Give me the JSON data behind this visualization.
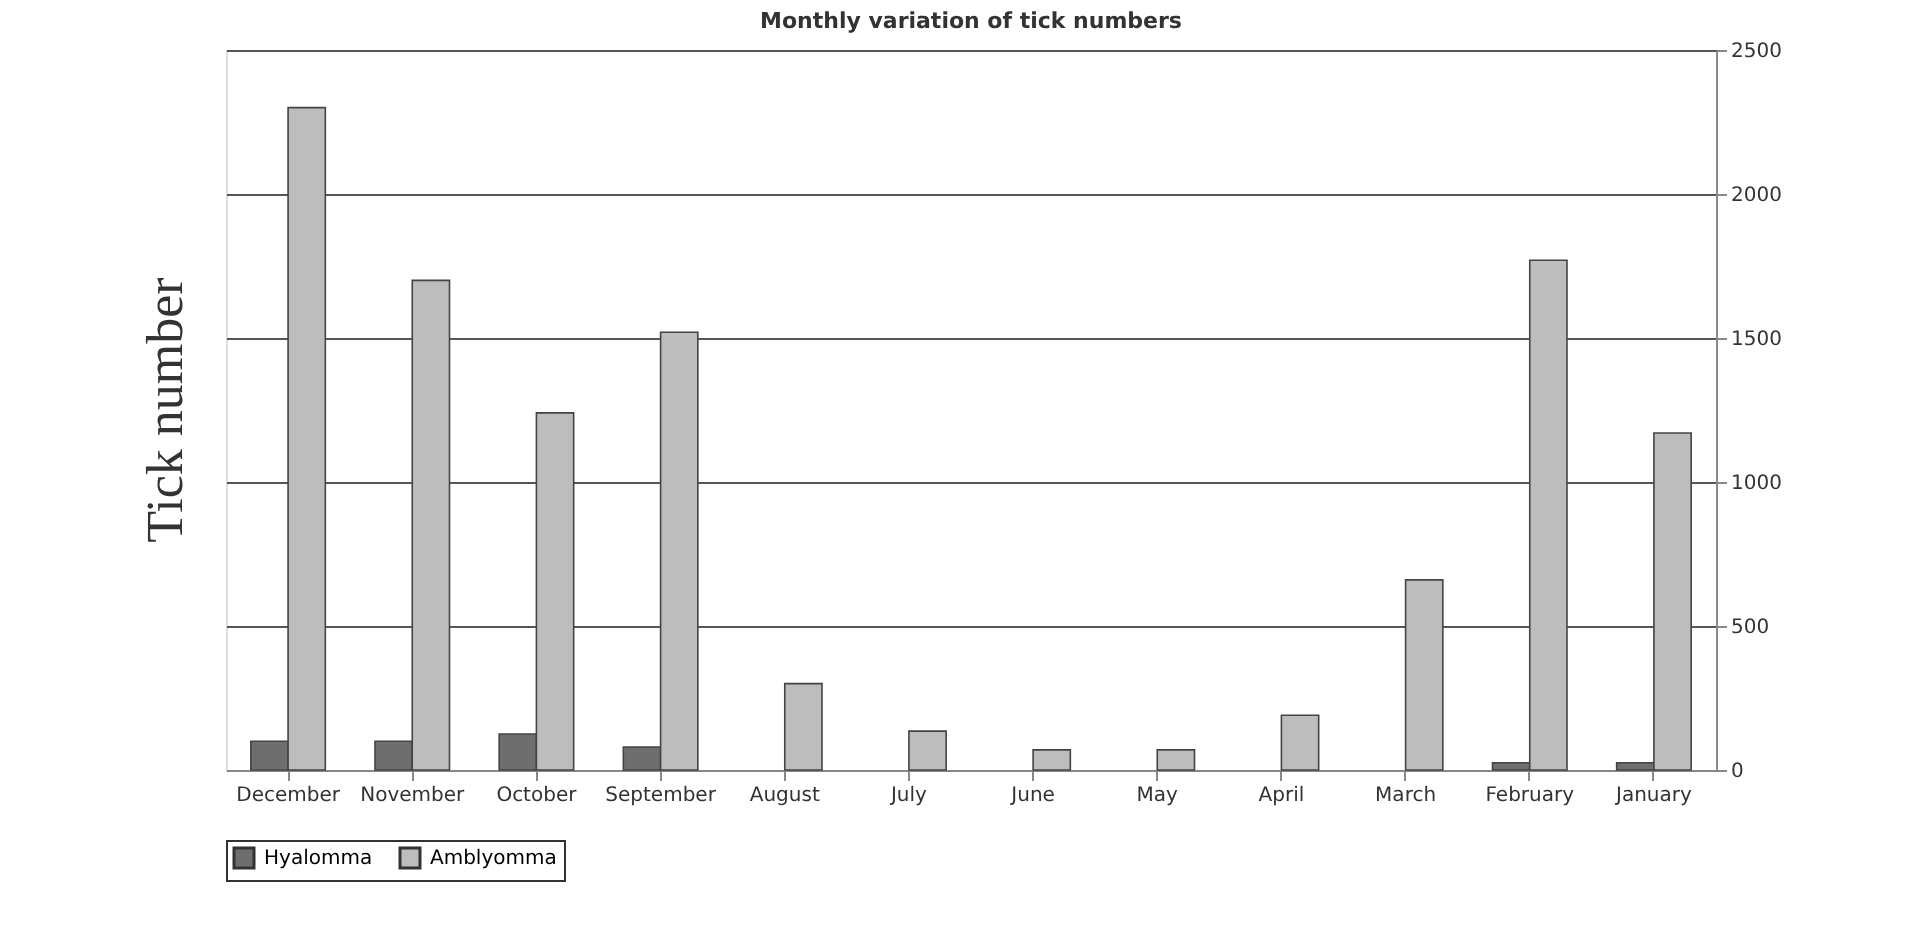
{
  "chart_data": {
    "type": "bar",
    "title": "Monthly variation of tick numbers",
    "ylabel": "Tick number",
    "categories": [
      "December",
      "November",
      "October",
      "September",
      "August",
      "July",
      "June",
      "May",
      "April",
      "March",
      "February",
      "January"
    ],
    "series": [
      {
        "name": "Hyalomma",
        "color": "#6e6e6e",
        "values": [
          100,
          100,
          125,
          80,
          null,
          null,
          null,
          null,
          null,
          null,
          25,
          25
        ]
      },
      {
        "name": "Amblyomma",
        "color": "#bdbdbd",
        "values": [
          2300,
          1700,
          1240,
          1520,
          300,
          135,
          70,
          70,
          190,
          660,
          1770,
          1170
        ]
      }
    ],
    "ylim": [
      0,
      2500
    ],
    "yticks": [
      0,
      500,
      1000,
      1500,
      2000,
      2500
    ],
    "grid": "y",
    "legend": "bottom"
  }
}
